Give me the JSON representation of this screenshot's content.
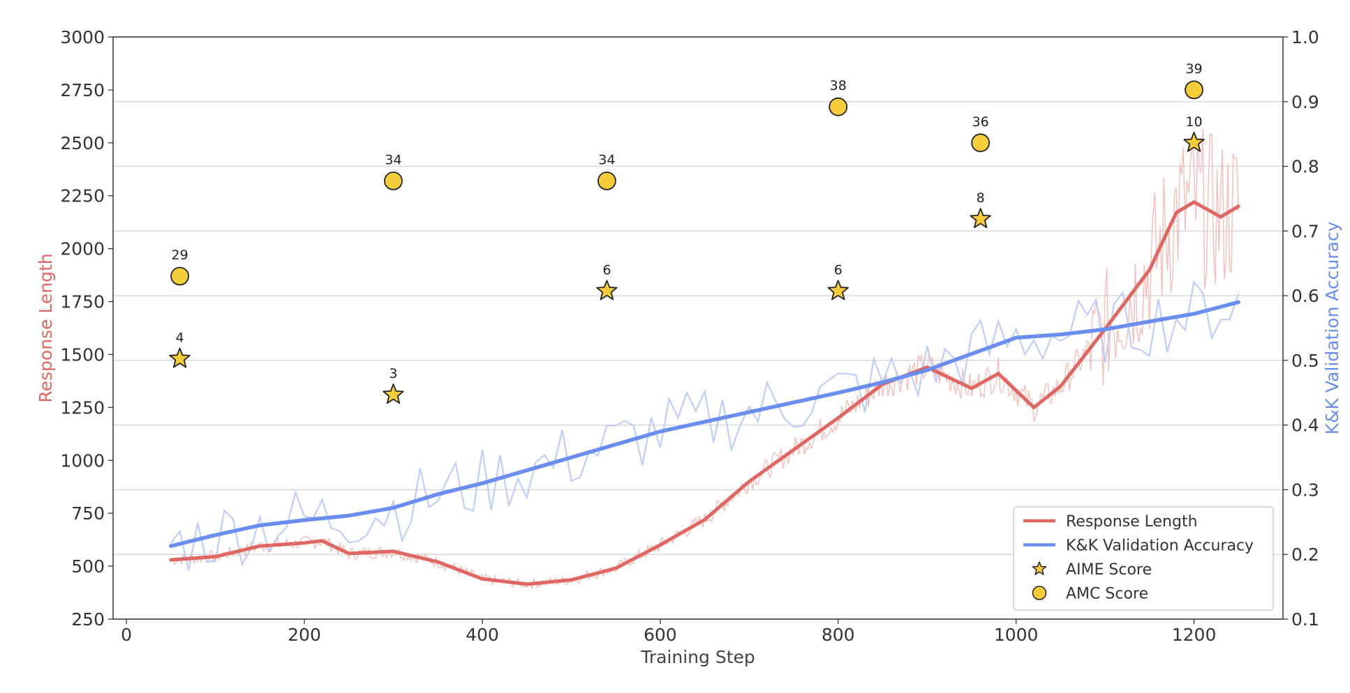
{
  "chart_data": {
    "type": "line",
    "xlabel": "Training Step",
    "ylabel_left": "Response Length",
    "ylabel_right": "K&K Validation Accuracy",
    "xlim": [
      -15,
      1300
    ],
    "ylim_left": [
      250,
      3000
    ],
    "ylim_right": [
      0.1,
      1.0
    ],
    "x_ticks": [
      "0",
      "200",
      "400",
      "600",
      "800",
      "1000",
      "1200"
    ],
    "y_ticks_left": [
      "250",
      "500",
      "750",
      "1000",
      "1250",
      "1500",
      "1750",
      "2000",
      "2250",
      "2500",
      "2750",
      "3000"
    ],
    "y_ticks_right": [
      "0.1",
      "0.2",
      "0.3",
      "0.4",
      "0.5",
      "0.6",
      "0.7",
      "0.8",
      "0.9",
      "1.0"
    ],
    "grid": "horizontal (right axis)",
    "legend_position": "bottom-right",
    "colors": {
      "response": "#e06761",
      "response_raw": "#f3b3ad",
      "accuracy": "#6a8ef0",
      "accuracy_raw": "#b7c9f8",
      "marker_fill": "#f5cc3a",
      "marker_edge": "#222222"
    },
    "series": [
      {
        "name": "Response Length",
        "axis": "left",
        "x": [
          50,
          100,
          150,
          200,
          220,
          250,
          300,
          350,
          400,
          450,
          500,
          550,
          600,
          650,
          700,
          750,
          800,
          850,
          900,
          950,
          980,
          1000,
          1020,
          1050,
          1100,
          1150,
          1180,
          1200,
          1230,
          1250
        ],
        "y": [
          530,
          545,
          595,
          610,
          620,
          560,
          570,
          520,
          440,
          415,
          435,
          490,
          600,
          720,
          900,
          1050,
          1200,
          1360,
          1440,
          1340,
          1410,
          1330,
          1250,
          1350,
          1620,
          1900,
          2170,
          2220,
          2150,
          2200
        ]
      },
      {
        "name": "K&K Validation Accuracy",
        "axis": "right",
        "x": [
          50,
          100,
          150,
          200,
          250,
          300,
          350,
          400,
          450,
          500,
          550,
          600,
          650,
          700,
          750,
          800,
          850,
          900,
          950,
          1000,
          1050,
          1100,
          1150,
          1200,
          1250
        ],
        "y": [
          0.213,
          0.23,
          0.245,
          0.253,
          0.26,
          0.272,
          0.293,
          0.31,
          0.33,
          0.35,
          0.37,
          0.39,
          0.405,
          0.42,
          0.435,
          0.45,
          0.466,
          0.485,
          0.51,
          0.535,
          0.54,
          0.548,
          0.56,
          0.572,
          0.59
        ]
      },
      {
        "name": "AIME Score",
        "type": "scatter",
        "axis": "left",
        "marker": "star",
        "x": [
          60,
          300,
          540,
          800,
          960,
          1200
        ],
        "y": [
          1480,
          1310,
          1800,
          1800,
          2140,
          2500
        ],
        "labels": [
          "4",
          "3",
          "6",
          "6",
          "8",
          "10"
        ]
      },
      {
        "name": "AMC Score",
        "type": "scatter",
        "axis": "left",
        "marker": "circle",
        "x": [
          60,
          300,
          540,
          800,
          960,
          1200
        ],
        "y": [
          1870,
          2320,
          2320,
          2670,
          2500,
          2750
        ],
        "labels": [
          "29",
          "34",
          "34",
          "38",
          "36",
          "39"
        ]
      }
    ]
  }
}
